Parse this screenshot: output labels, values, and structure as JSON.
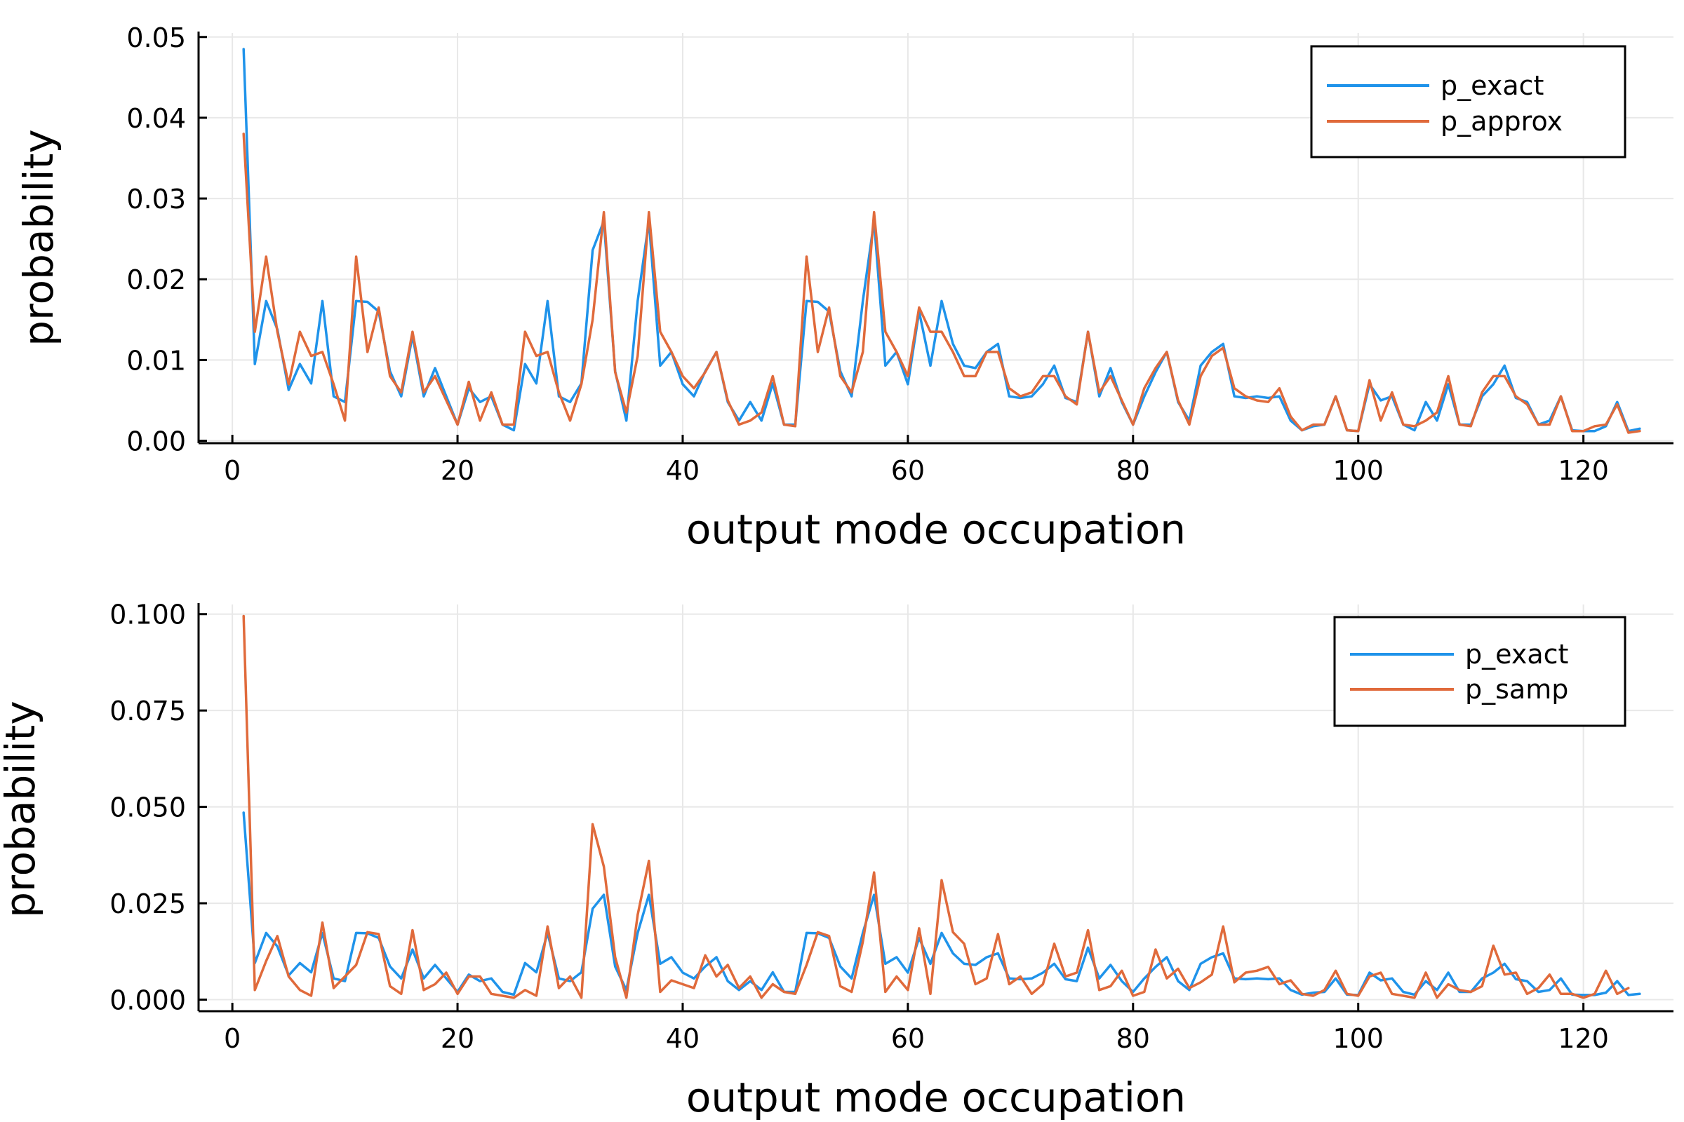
{
  "colors": {
    "exact": "#1f93ea",
    "other": "#e06a3b",
    "grid": "#e8e8e8",
    "axis": "#000000"
  },
  "chart_data": [
    {
      "type": "line",
      "title": "",
      "xlabel": "output mode occupation",
      "ylabel": "probability",
      "xlim": [
        -3,
        128
      ],
      "ylim": [
        -0.0003,
        0.0505
      ],
      "xticks": [
        0,
        20,
        40,
        60,
        80,
        100,
        120
      ],
      "xtick_labels": [
        "0",
        "20",
        "40",
        "60",
        "80",
        "100",
        "120"
      ],
      "yticks": [
        0,
        0.01,
        0.02,
        0.03,
        0.04,
        0.05
      ],
      "ytick_labels": [
        "0.00",
        "0.01",
        "0.02",
        "0.03",
        "0.04",
        "0.05"
      ],
      "grid": true,
      "legend_position": "top-right",
      "x_start": 1,
      "series": [
        {
          "name": "p_exact",
          "color": "#1f93ea",
          "values": [
            0.0485,
            0.0095,
            0.0173,
            0.0138,
            0.0063,
            0.0095,
            0.0071,
            0.0173,
            0.0055,
            0.0048,
            0.0173,
            0.0172,
            0.016,
            0.0086,
            0.0055,
            0.013,
            0.0055,
            0.009,
            0.0055,
            0.002,
            0.0065,
            0.0048,
            0.0055,
            0.002,
            0.0013,
            0.0095,
            0.0071,
            0.0173,
            0.0055,
            0.0048,
            0.0071,
            0.0236,
            0.0272,
            0.0086,
            0.0025,
            0.0173,
            0.0272,
            0.0093,
            0.011,
            0.007,
            0.0055,
            0.0086,
            0.011,
            0.0048,
            0.0025,
            0.0048,
            0.0025,
            0.0071,
            0.002,
            0.002,
            0.0173,
            0.0172,
            0.016,
            0.0086,
            0.0055,
            0.0173,
            0.0272,
            0.0093,
            0.011,
            0.007,
            0.016,
            0.0093,
            0.0173,
            0.012,
            0.0093,
            0.009,
            0.011,
            0.012,
            0.0055,
            0.0053,
            0.0055,
            0.007,
            0.0093,
            0.0053,
            0.0048,
            0.0135,
            0.0055,
            0.009,
            0.0048,
            0.002,
            0.0055,
            0.0085,
            0.011,
            0.0048,
            0.0025,
            0.0093,
            0.011,
            0.012,
            0.0055,
            0.0053,
            0.0055,
            0.0053,
            0.0055,
            0.0025,
            0.0013,
            0.0018,
            0.002,
            0.0055,
            0.0013,
            0.0012,
            0.007,
            0.005,
            0.0055,
            0.002,
            0.0013,
            0.0048,
            0.0025,
            0.007,
            0.002,
            0.002,
            0.0055,
            0.007,
            0.0093,
            0.0053,
            0.0048,
            0.002,
            0.0025,
            0.0055,
            0.0013,
            0.0012,
            0.0012,
            0.0018,
            0.0048,
            0.0012,
            0.0015
          ]
        },
        {
          "name": "p_approx",
          "color": "#e06a3b",
          "values": [
            0.038,
            0.0135,
            0.0228,
            0.0135,
            0.007,
            0.0135,
            0.0105,
            0.011,
            0.007,
            0.0025,
            0.0228,
            0.011,
            0.0165,
            0.008,
            0.006,
            0.0135,
            0.006,
            0.008,
            0.005,
            0.002,
            0.0073,
            0.0025,
            0.006,
            0.002,
            0.002,
            0.0135,
            0.0105,
            0.011,
            0.006,
            0.0025,
            0.007,
            0.015,
            0.0283,
            0.0085,
            0.0035,
            0.0105,
            0.0283,
            0.0135,
            0.011,
            0.008,
            0.0065,
            0.0085,
            0.011,
            0.005,
            0.002,
            0.0025,
            0.0035,
            0.008,
            0.002,
            0.0018,
            0.0228,
            0.011,
            0.0165,
            0.008,
            0.006,
            0.011,
            0.0283,
            0.0135,
            0.011,
            0.008,
            0.0165,
            0.0135,
            0.0135,
            0.011,
            0.008,
            0.008,
            0.011,
            0.011,
            0.0065,
            0.0055,
            0.006,
            0.008,
            0.008,
            0.0055,
            0.0045,
            0.0135,
            0.006,
            0.008,
            0.005,
            0.002,
            0.0065,
            0.009,
            0.011,
            0.005,
            0.002,
            0.008,
            0.0105,
            0.0115,
            0.0065,
            0.0055,
            0.005,
            0.0048,
            0.0065,
            0.003,
            0.0013,
            0.002,
            0.002,
            0.0055,
            0.0013,
            0.0012,
            0.0075,
            0.0025,
            0.006,
            0.002,
            0.0018,
            0.0025,
            0.0035,
            0.008,
            0.002,
            0.0018,
            0.006,
            0.008,
            0.008,
            0.0055,
            0.0045,
            0.002,
            0.002,
            0.0055,
            0.0012,
            0.0012,
            0.0018,
            0.002,
            0.0045,
            0.001,
            0.0012
          ]
        }
      ]
    },
    {
      "type": "line",
      "title": "",
      "xlabel": "output mode occupation",
      "ylabel": "probability",
      "xlim": [
        -3,
        128
      ],
      "ylim": [
        -0.003,
        0.1025
      ],
      "xticks": [
        0,
        20,
        40,
        60,
        80,
        100,
        120
      ],
      "xtick_labels": [
        "0",
        "20",
        "40",
        "60",
        "80",
        "100",
        "120"
      ],
      "yticks": [
        0,
        0.025,
        0.05,
        0.075,
        0.1
      ],
      "ytick_labels": [
        "0.000",
        "0.025",
        "0.050",
        "0.075",
        "0.100"
      ],
      "grid": true,
      "legend_position": "top-right",
      "x_start": 1,
      "series": [
        {
          "name": "p_exact",
          "color": "#1f93ea",
          "values": [
            0.0485,
            0.0095,
            0.0173,
            0.0138,
            0.0063,
            0.0095,
            0.0071,
            0.0173,
            0.0055,
            0.0048,
            0.0173,
            0.0172,
            0.016,
            0.0086,
            0.0055,
            0.013,
            0.0055,
            0.009,
            0.0055,
            0.002,
            0.0065,
            0.0048,
            0.0055,
            0.002,
            0.0013,
            0.0095,
            0.0071,
            0.0173,
            0.0055,
            0.0048,
            0.0071,
            0.0236,
            0.0272,
            0.0086,
            0.0025,
            0.0173,
            0.0272,
            0.0093,
            0.011,
            0.007,
            0.0055,
            0.0086,
            0.011,
            0.0048,
            0.0025,
            0.0048,
            0.0025,
            0.0071,
            0.002,
            0.002,
            0.0173,
            0.0172,
            0.016,
            0.0086,
            0.0055,
            0.0173,
            0.0272,
            0.0093,
            0.011,
            0.007,
            0.016,
            0.0093,
            0.0173,
            0.012,
            0.0093,
            0.009,
            0.011,
            0.012,
            0.0055,
            0.0053,
            0.0055,
            0.007,
            0.0093,
            0.0053,
            0.0048,
            0.0135,
            0.0055,
            0.009,
            0.0048,
            0.002,
            0.0055,
            0.0085,
            0.011,
            0.0048,
            0.0025,
            0.0093,
            0.011,
            0.012,
            0.0055,
            0.0053,
            0.0055,
            0.0053,
            0.0055,
            0.0025,
            0.0013,
            0.0018,
            0.002,
            0.0055,
            0.0013,
            0.0012,
            0.007,
            0.005,
            0.0055,
            0.002,
            0.0013,
            0.0048,
            0.0025,
            0.007,
            0.002,
            0.002,
            0.0055,
            0.007,
            0.0093,
            0.0053,
            0.0048,
            0.002,
            0.0025,
            0.0055,
            0.0013,
            0.0012,
            0.0012,
            0.0018,
            0.0048,
            0.0012,
            0.0015
          ]
        },
        {
          "name": "p_samp",
          "color": "#e06a3b",
          "values": [
            0.0995,
            0.0025,
            0.01,
            0.0165,
            0.006,
            0.0025,
            0.001,
            0.02,
            0.003,
            0.006,
            0.009,
            0.0175,
            0.017,
            0.0035,
            0.0015,
            0.018,
            0.0025,
            0.004,
            0.007,
            0.0015,
            0.006,
            0.006,
            0.0015,
            0.001,
            0.0005,
            0.0025,
            0.001,
            0.019,
            0.003,
            0.006,
            0.0005,
            0.0455,
            0.0345,
            0.011,
            0.0005,
            0.022,
            0.036,
            0.002,
            0.005,
            0.004,
            0.003,
            0.0115,
            0.006,
            0.009,
            0.003,
            0.006,
            0.0005,
            0.004,
            0.002,
            0.0015,
            0.009,
            0.0175,
            0.0165,
            0.0035,
            0.002,
            0.015,
            0.033,
            0.002,
            0.006,
            0.0025,
            0.0185,
            0.0015,
            0.031,
            0.0175,
            0.0145,
            0.004,
            0.0055,
            0.017,
            0.004,
            0.006,
            0.0015,
            0.004,
            0.0145,
            0.006,
            0.007,
            0.018,
            0.0025,
            0.0035,
            0.0075,
            0.001,
            0.002,
            0.013,
            0.0055,
            0.008,
            0.003,
            0.0045,
            0.0065,
            0.019,
            0.0045,
            0.007,
            0.0075,
            0.0085,
            0.004,
            0.005,
            0.0015,
            0.001,
            0.0025,
            0.0075,
            0.0015,
            0.001,
            0.006,
            0.007,
            0.0015,
            0.001,
            0.0005,
            0.007,
            0.0005,
            0.004,
            0.0025,
            0.002,
            0.0035,
            0.014,
            0.0065,
            0.007,
            0.0015,
            0.003,
            0.0065,
            0.0015,
            0.0015,
            0.0005,
            0.0015,
            0.0075,
            0.0015,
            0.003
          ]
        }
      ]
    }
  ]
}
